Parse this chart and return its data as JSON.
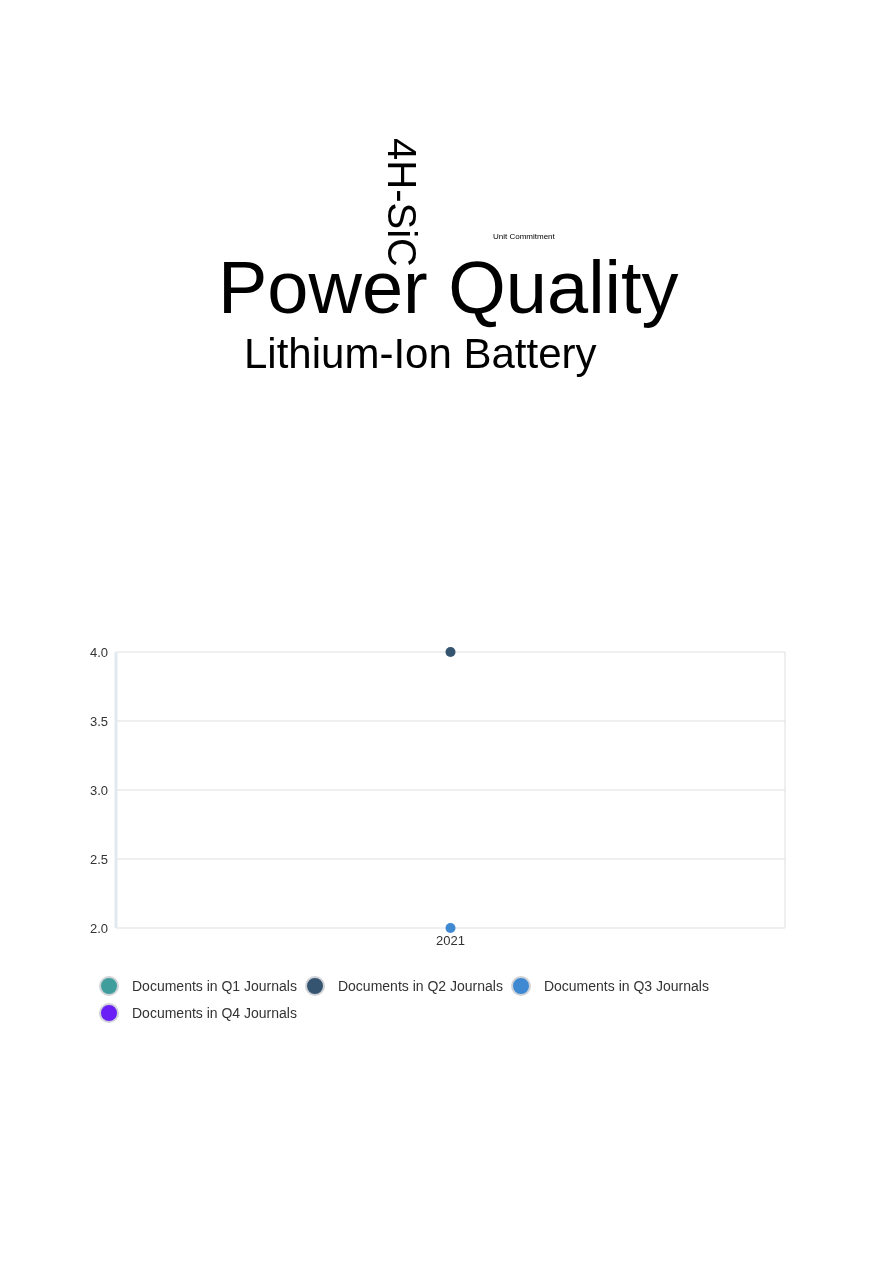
{
  "chart_data": [
    {
      "type": "other",
      "annotations": [
        "4H-SiC",
        "Unit Commitment",
        "Power Quality",
        "Lithium-Ion Battery"
      ]
    },
    {
      "type": "line",
      "categories": [
        "2021"
      ],
      "series": [
        {
          "name": "Documents in Q1 Journals",
          "color": "#3f9e9c",
          "values": [
            null
          ]
        },
        {
          "name": "Documents in Q2 Journals",
          "color": "#35546f",
          "values": [
            4
          ]
        },
        {
          "name": "Documents in Q3 Journals",
          "color": "#3f88d2",
          "values": [
            2
          ]
        },
        {
          "name": "Documents in Q4 Journals",
          "color": "#6a1ff6",
          "values": [
            null
          ]
        }
      ],
      "ylim": [
        2,
        4
      ],
      "yticks": [
        {
          "value": 2,
          "label": "2.0"
        },
        {
          "value": 2.5,
          "label": "2.5"
        },
        {
          "value": 3,
          "label": "3.0"
        },
        {
          "value": 3.5,
          "label": "3.5"
        },
        {
          "value": 4,
          "label": "4.0"
        }
      ],
      "grid": "y",
      "legend": "bottom",
      "marker": "circle"
    }
  ]
}
